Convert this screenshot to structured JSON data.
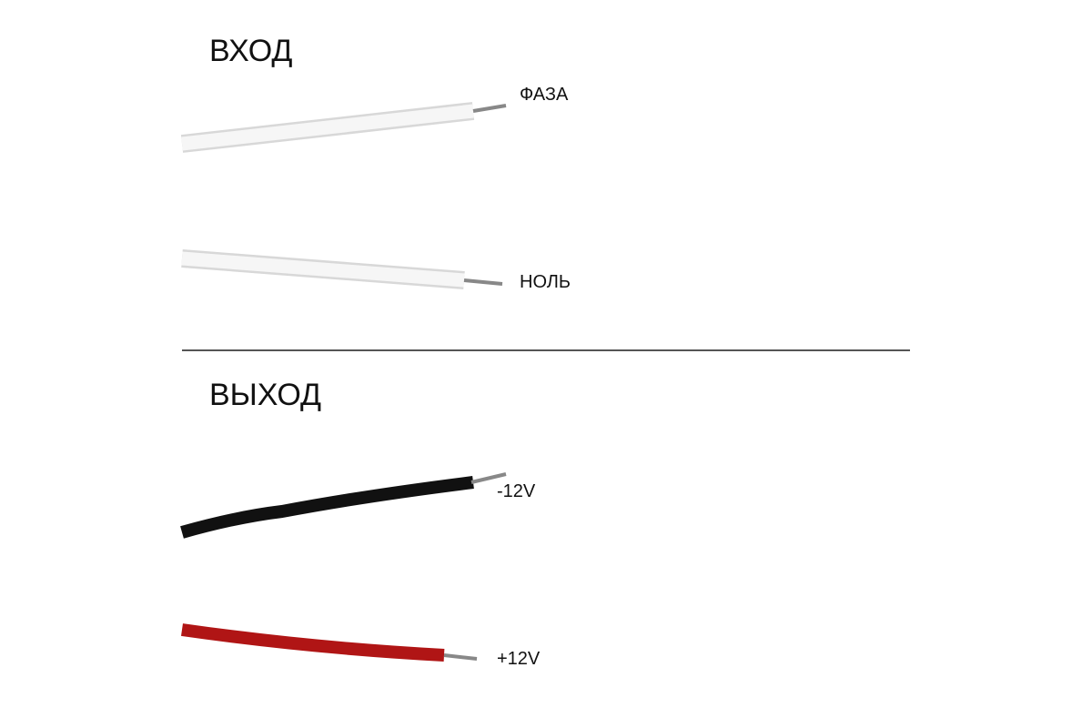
{
  "sections": [
    {
      "title": "ВХОД",
      "wires": [
        {
          "label": "ФАЗА"
        },
        {
          "label": "НОЛЬ"
        }
      ]
    },
    {
      "title": "ВЫХОД",
      "wires": [
        {
          "label": "-12V"
        },
        {
          "label": "+12V"
        }
      ]
    }
  ]
}
